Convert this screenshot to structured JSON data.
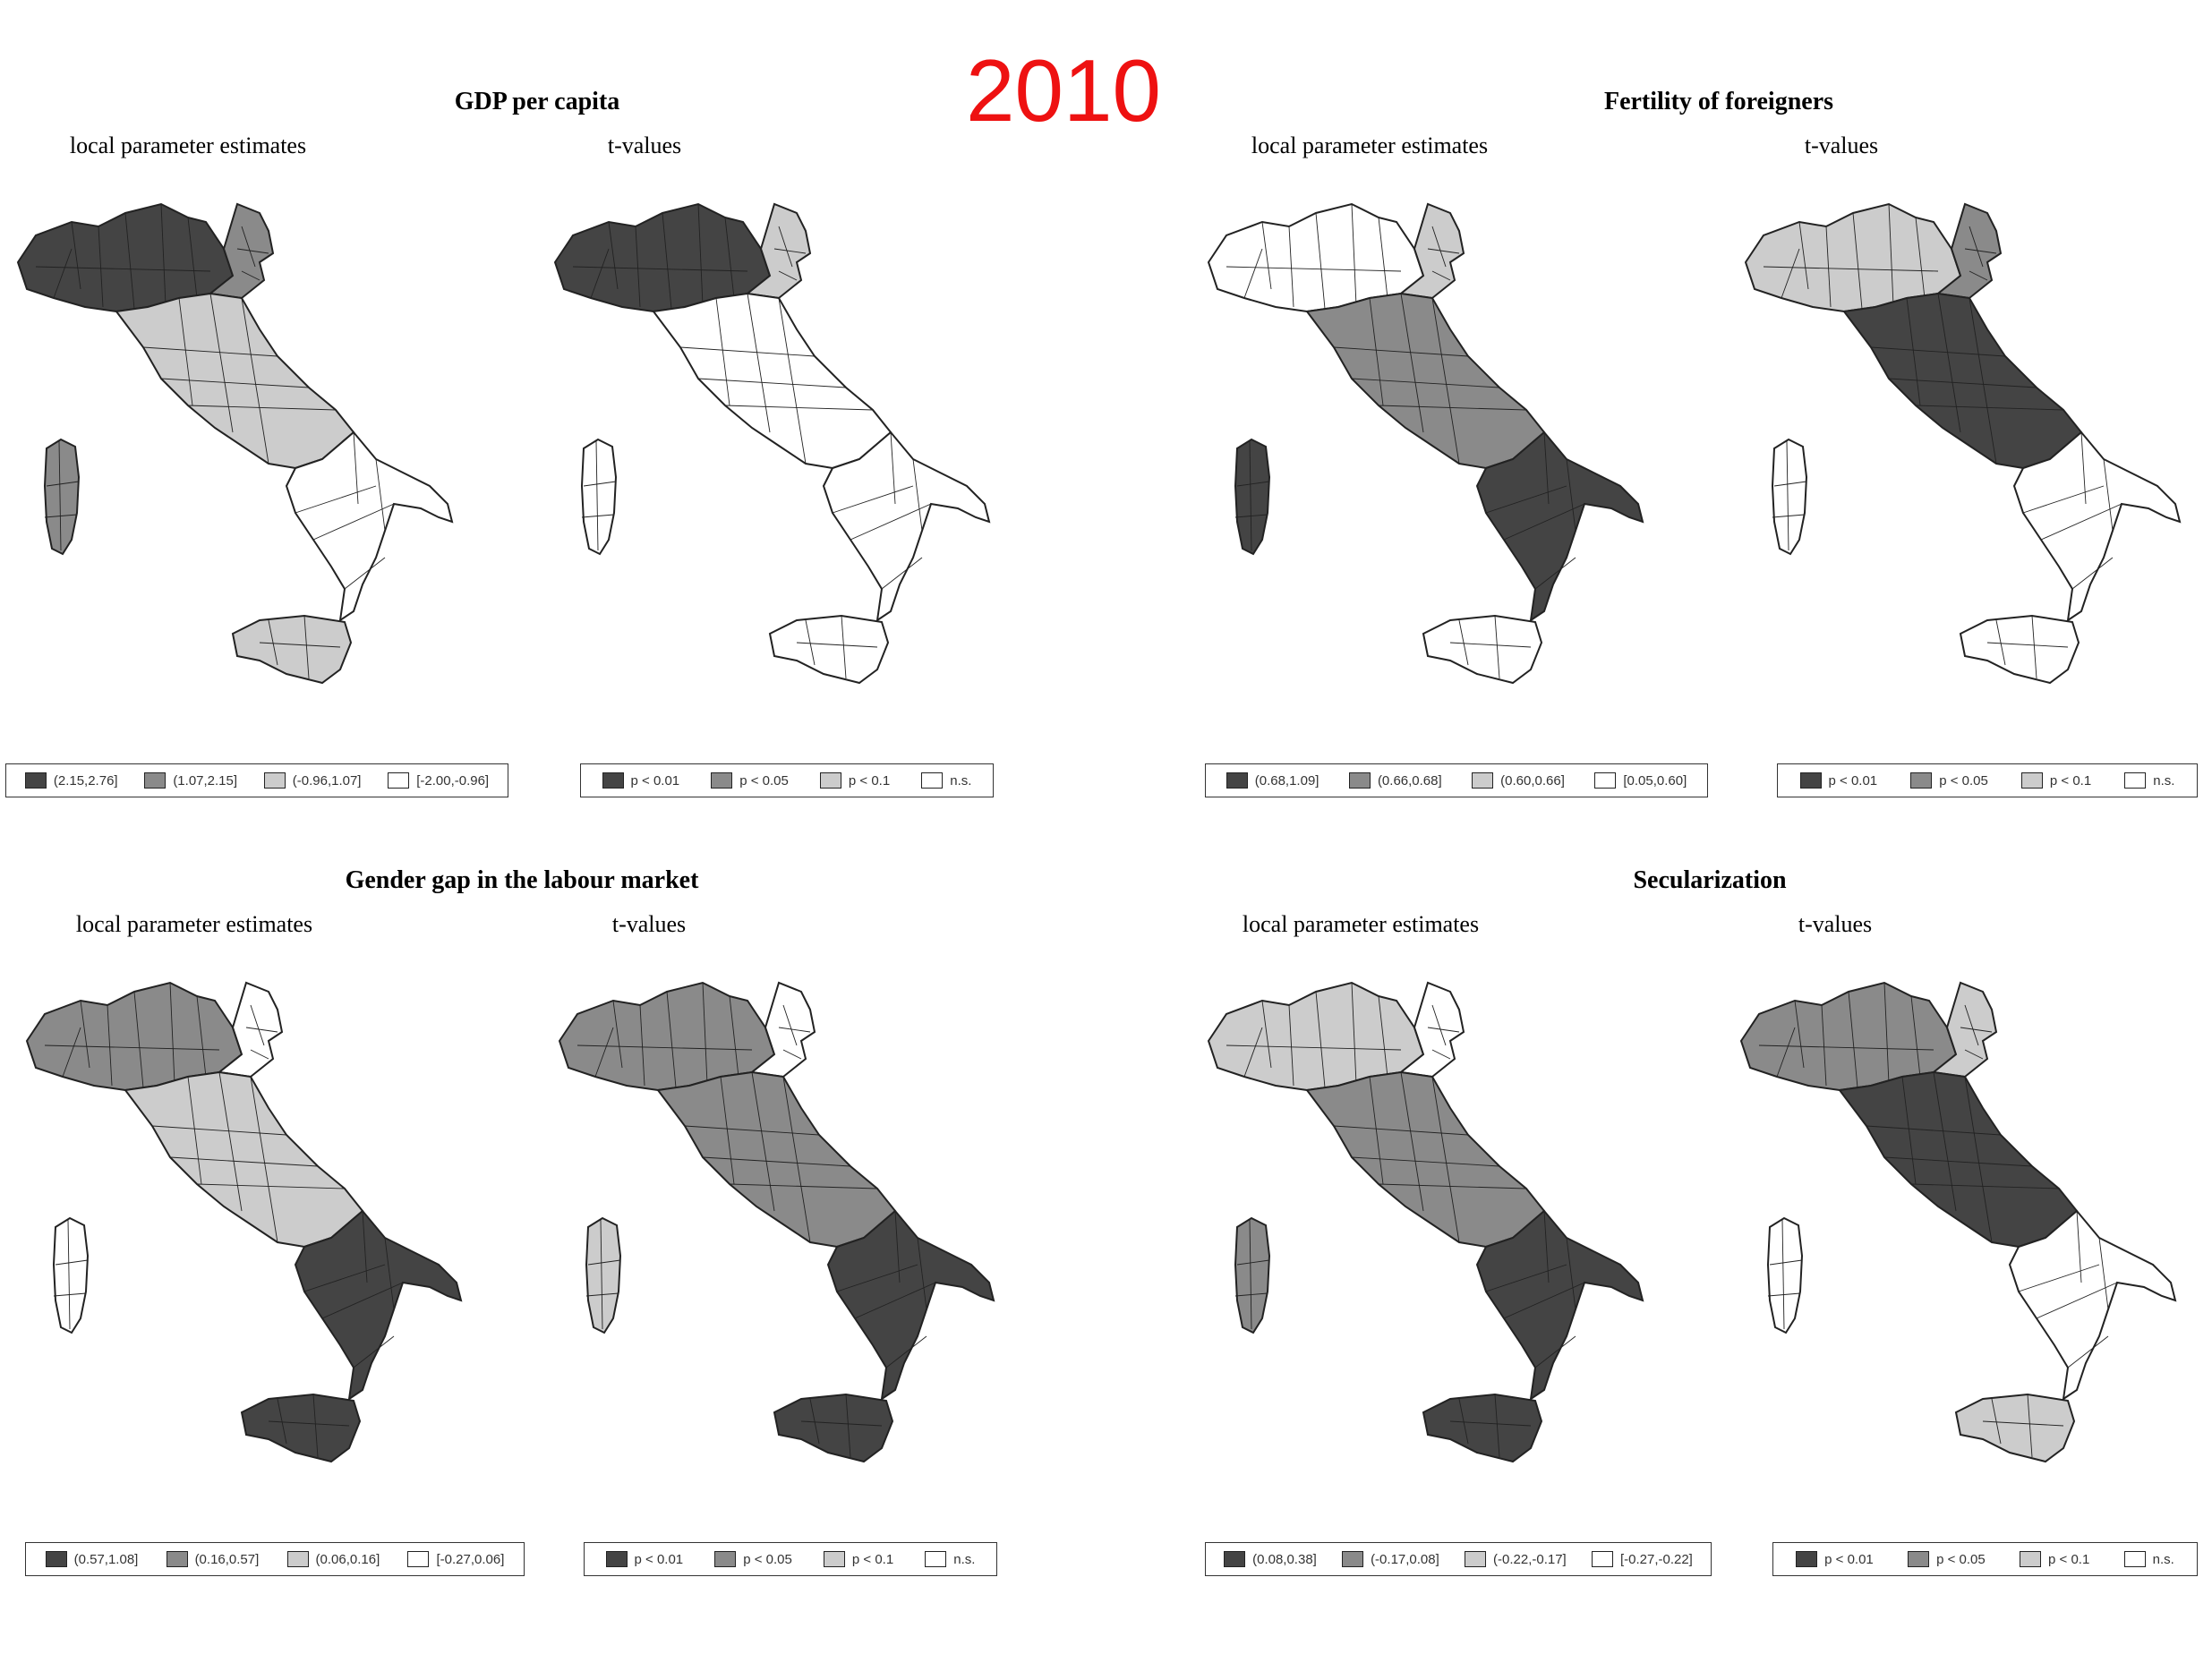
{
  "year": "2010",
  "colors": {
    "class0": "#444444",
    "class1": "#8a8a8a",
    "class2": "#cccccc",
    "class3": "#ffffff",
    "year_text": "#ee1111"
  },
  "subtitles": {
    "estimates": "local parameter estimates",
    "tvalues": "t-values"
  },
  "panels": [
    {
      "title": "GDP per capita",
      "estimates": {
        "shading": {
          "north": 0,
          "northeast": 1,
          "center": 2,
          "south": 3,
          "sicily": 2,
          "sardinia": 1
        },
        "legend": [
          "(2.15,2.76]",
          "(1.07,2.15]",
          "(-0.96,1.07]",
          "[-2.00,-0.96]"
        ]
      },
      "tvalues": {
        "shading": {
          "north": 0,
          "northeast": 2,
          "center": 3,
          "south": 3,
          "sicily": 3,
          "sardinia": 3
        },
        "legend": [
          "p < 0.01",
          "p < 0.05",
          "p < 0.1",
          "n.s."
        ]
      }
    },
    {
      "title": "Fertility of foreigners",
      "estimates": {
        "shading": {
          "north": 3,
          "northeast": 2,
          "center": 1,
          "south": 0,
          "sicily": 3,
          "sardinia": 0
        },
        "legend": [
          "(0.68,1.09]",
          "(0.66,0.68]",
          "(0.60,0.66]",
          "[0.05,0.60]"
        ]
      },
      "tvalues": {
        "shading": {
          "north": 2,
          "northeast": 1,
          "center": 0,
          "south": 3,
          "sicily": 3,
          "sardinia": 3
        },
        "legend": [
          "p < 0.01",
          "p < 0.05",
          "p < 0.1",
          "n.s."
        ]
      }
    },
    {
      "title": "Gender gap in the labour market",
      "estimates": {
        "shading": {
          "north": 1,
          "northeast": 3,
          "center": 2,
          "south": 0,
          "sicily": 0,
          "sardinia": 3
        },
        "legend": [
          "(0.57,1.08]",
          "(0.16,0.57]",
          "(0.06,0.16]",
          "[-0.27,0.06]"
        ]
      },
      "tvalues": {
        "shading": {
          "north": 1,
          "northeast": 3,
          "center": 1,
          "south": 0,
          "sicily": 0,
          "sardinia": 2
        },
        "legend": [
          "p < 0.01",
          "p < 0.05",
          "p < 0.1",
          "n.s."
        ]
      }
    },
    {
      "title": "Secularization",
      "estimates": {
        "shading": {
          "north": 2,
          "northeast": 3,
          "center": 1,
          "south": 0,
          "sicily": 0,
          "sardinia": 1
        },
        "legend": [
          "(0.08,0.38]",
          "(-0.17,0.08]",
          "(-0.22,-0.17]",
          "[-0.27,-0.22]"
        ]
      },
      "tvalues": {
        "shading": {
          "north": 1,
          "northeast": 2,
          "center": 0,
          "south": 3,
          "sicily": 2,
          "sardinia": 3
        },
        "legend": [
          "p < 0.01",
          "p < 0.05",
          "p < 0.1",
          "n.s."
        ]
      }
    }
  ]
}
